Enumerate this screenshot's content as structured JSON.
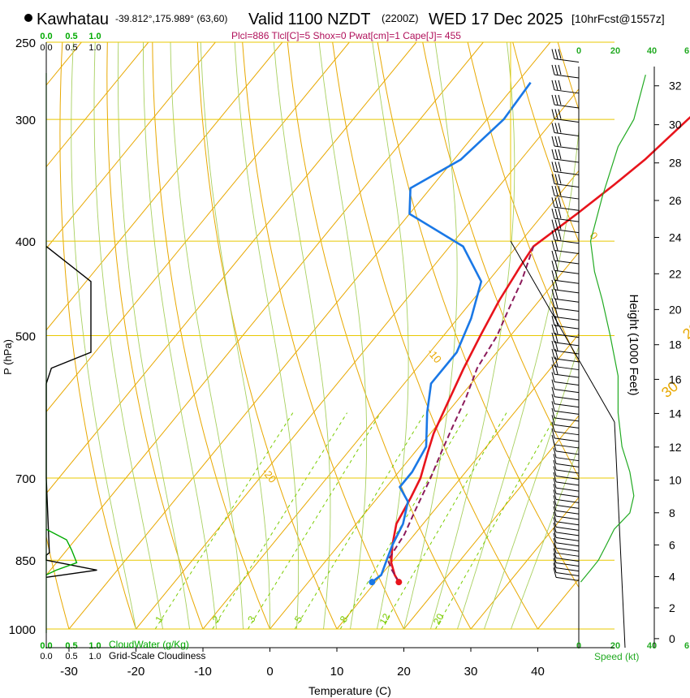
{
  "header": {
    "station": "Kawhatau",
    "coords": "-39.812°,175.989° (63,60)",
    "valid": "Valid 1100 NZDT",
    "zulu": "(2200Z)",
    "date": "WED 17 Dec 2025",
    "forecast": "[10hrFcst@1557z]",
    "params": "Plcl=886 Tlcl[C]=5 Shox=0 Pwat[cm]=1 Cape[J]= 455"
  },
  "colors": {
    "temp": "#e8141c",
    "dew": "#1a78e6",
    "parcel": "#8b1a5a",
    "iso": "#e8a800",
    "grid": "#e8c800",
    "mixing": "#7acc00",
    "moist": "#a8d060",
    "cloud": "#00aa00",
    "speed": "#22aa22"
  },
  "axes": {
    "xlabel": "Temperature (C)",
    "ylabel": "P (hPa)",
    "height_label": "Height (1000 Feet)",
    "speed_label": "Speed (kt)",
    "cloudwater_label": "CloudWater (g/Kg)",
    "cloudiness_label": "Grid-Scale Cloudiness"
  },
  "chart_data": {
    "type": "line",
    "title": "Skew-T sounding",
    "pressure_levels": [
      250,
      300,
      400,
      500,
      700,
      850,
      1000
    ],
    "pressure_labels": [
      "250",
      "300",
      "400",
      "500",
      "700",
      "850",
      "1000"
    ],
    "pressure_range": [
      250,
      1000
    ],
    "temperature_ticks": [
      -30,
      -20,
      -10,
      0,
      10,
      20,
      30,
      40
    ],
    "temperature_tick_labels": [
      "-30",
      "-20",
      "-10",
      "0",
      "10",
      "20",
      "30",
      "40"
    ],
    "isotherm_labels": [
      {
        "text": "10",
        "t": 10,
        "p": 305
      },
      {
        "text": "0",
        "t": 0,
        "p": 395
      },
      {
        "text": "-10",
        "t": -10,
        "p": 520
      },
      {
        "text": "-20",
        "t": -20,
        "p": 690
      }
    ],
    "dry_adiabat_labels": [
      {
        "text": "0",
        "t": 17,
        "p": 345
      },
      {
        "text": "10",
        "t": 23,
        "p": 425
      },
      {
        "text": "20",
        "t": 27,
        "p": 505
      },
      {
        "text": "30",
        "t": 31,
        "p": 580
      }
    ],
    "mixing_ratio_lines": [
      1,
      2,
      3,
      5,
      8,
      12,
      20
    ],
    "mixing_ratio_labels": [
      "1",
      "2",
      "3",
      "5",
      "8",
      "12",
      "20"
    ],
    "height_ticks": [
      "0",
      "2",
      "4",
      "6",
      "8",
      "10",
      "12",
      "14",
      "16",
      "18",
      "20",
      "22",
      "24",
      "26",
      "28",
      "30",
      "32"
    ],
    "speed_ticks": [
      "0",
      "20",
      "40",
      "6"
    ],
    "cloud_ticks": [
      "0.0",
      "0.5",
      "1.0"
    ],
    "series": [
      {
        "name": "Temperature",
        "points": [
          [
            2.5,
            262
          ],
          [
            1.5,
            275
          ],
          [
            0,
            300
          ],
          [
            -1.5,
            330
          ],
          [
            -3,
            350
          ],
          [
            -5,
            375
          ],
          [
            -7.5,
            405
          ],
          [
            -7,
            425
          ],
          [
            -6,
            460
          ],
          [
            -4.5,
            500
          ],
          [
            -3,
            540
          ],
          [
            -1,
            590
          ],
          [
            0.5,
            630
          ],
          [
            2,
            660
          ],
          [
            4,
            700
          ],
          [
            5,
            735
          ],
          [
            6,
            780
          ],
          [
            8,
            820
          ],
          [
            10,
            855
          ],
          [
            12,
            880
          ],
          [
            13.5,
            895
          ]
        ]
      },
      {
        "name": "Dewpoint",
        "points": [
          [
            -28,
            275
          ],
          [
            -27.5,
            300
          ],
          [
            -29,
            330
          ],
          [
            -33,
            353
          ],
          [
            -30,
            375
          ],
          [
            -18,
            405
          ],
          [
            -11,
            440
          ],
          [
            -8,
            480
          ],
          [
            -6,
            520
          ],
          [
            -6,
            560
          ],
          [
            -3,
            600
          ],
          [
            1,
            650
          ],
          [
            2,
            690
          ],
          [
            2,
            715
          ],
          [
            5,
            740
          ],
          [
            7,
            780
          ],
          [
            8,
            820
          ],
          [
            9,
            850
          ],
          [
            10,
            880
          ],
          [
            9.5,
            895
          ]
        ]
      },
      {
        "name": "Parcel",
        "points": [
          [
            13.5,
            895
          ],
          [
            11,
            870
          ],
          [
            9.2,
            850
          ],
          [
            8.5,
            800
          ],
          [
            7,
            750
          ],
          [
            5.5,
            700
          ],
          [
            4,
            660
          ],
          [
            2.5,
            620
          ],
          [
            1,
            580
          ],
          [
            -1,
            540
          ],
          [
            -2,
            500
          ],
          [
            -3.5,
            470
          ],
          [
            -5,
            440
          ],
          [
            -7.5,
            405
          ]
        ]
      }
    ],
    "wind_speed_profile_kt": [
      [
        0.5,
        895
      ],
      [
        3,
        870
      ],
      [
        5,
        850
      ],
      [
        7,
        820
      ],
      [
        9,
        790
      ],
      [
        13,
        760
      ],
      [
        14,
        730
      ],
      [
        13,
        690
      ],
      [
        11,
        650
      ],
      [
        10,
        600
      ],
      [
        10,
        550
      ],
      [
        8,
        500
      ],
      [
        6,
        460
      ],
      [
        4,
        430
      ],
      [
        3,
        400
      ],
      [
        6,
        360
      ],
      [
        10,
        320
      ],
      [
        14,
        300
      ],
      [
        17,
        270
      ]
    ],
    "cloudiness_profile": [
      [
        0,
        405
      ],
      [
        0.44,
        440
      ],
      [
        0.44,
        520
      ],
      [
        0.05,
        540
      ],
      [
        0,
        560
      ],
      [
        0,
        700
      ],
      [
        0.03,
        835
      ],
      [
        0,
        840
      ],
      [
        0,
        850
      ],
      [
        0.5,
        870
      ],
      [
        0,
        885
      ]
    ],
    "cloudwater_profile": [
      [
        0,
        790
      ],
      [
        0.2,
        810
      ],
      [
        0.25,
        830
      ],
      [
        0.3,
        855
      ],
      [
        0.1,
        870
      ],
      [
        0,
        880
      ]
    ],
    "wind_barb_levels_hpa": [
      262,
      272,
      282,
      292,
      302,
      312,
      322,
      332,
      342,
      352,
      362,
      372,
      382,
      392,
      402,
      412,
      422,
      432,
      442,
      452,
      462,
      472,
      482,
      492,
      502,
      512,
      522,
      532,
      542,
      552,
      562,
      572,
      582,
      592,
      602,
      612,
      622,
      632,
      642,
      652,
      662,
      672,
      682,
      692,
      702,
      712,
      722,
      732,
      742,
      752,
      762,
      772,
      782,
      792,
      802,
      812,
      822,
      832,
      842,
      852,
      862,
      872,
      882,
      892
    ],
    "wind_barb_rows": 64
  }
}
